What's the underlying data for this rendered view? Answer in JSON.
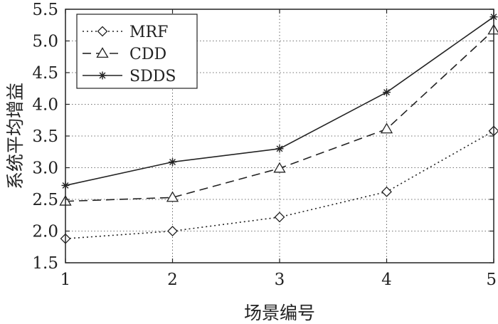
{
  "chart_data": {
    "type": "line",
    "title": "",
    "xlabel": "场景编号",
    "ylabel": "系统平均增益",
    "x": [
      1,
      2,
      3,
      4,
      5
    ],
    "xlim": [
      1,
      5
    ],
    "ylim": [
      1.5,
      5.5
    ],
    "xticks": [
      "1",
      "2",
      "3",
      "4",
      "5"
    ],
    "yticks": [
      "1.5",
      "2.0",
      "2.5",
      "3.0",
      "3.5",
      "4.0",
      "4.5",
      "5.0",
      "5.5"
    ],
    "grid": true,
    "legend_position": "top-left",
    "series": [
      {
        "name": "MRF",
        "values": [
          1.88,
          2.0,
          2.22,
          2.62,
          3.58
        ],
        "marker": "diamond",
        "line": "dotted",
        "color": "#222222"
      },
      {
        "name": "CDD",
        "values": [
          2.47,
          2.53,
          2.99,
          3.61,
          5.17
        ],
        "marker": "triangle",
        "line": "dashed",
        "color": "#222222"
      },
      {
        "name": "SDDS",
        "values": [
          2.72,
          3.09,
          3.3,
          4.19,
          5.38
        ],
        "marker": "star",
        "line": "solid",
        "color": "#222222"
      }
    ]
  }
}
